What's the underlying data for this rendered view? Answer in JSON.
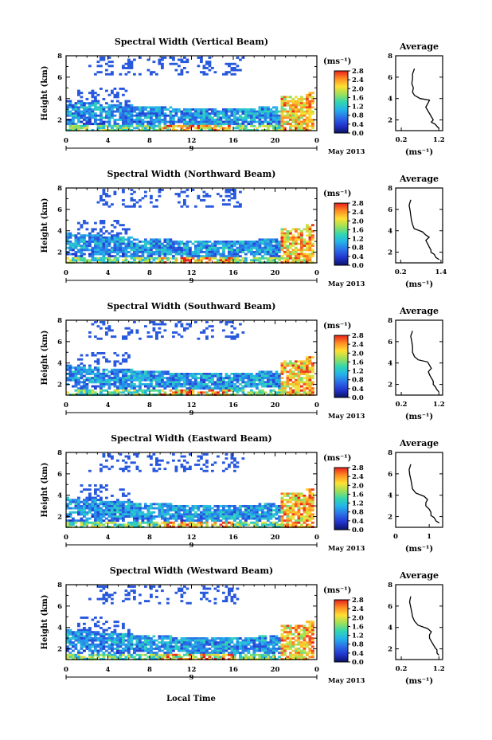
{
  "figure": {
    "xlabel": "Local Time",
    "date_label": "May 2013",
    "colorbar_unit": "(ms⁻¹)",
    "profile_xlabel": "(ms⁻¹)",
    "profile_title": "Average"
  },
  "chart_data": [
    {
      "type": "heatmap",
      "title": "Spectral Width (Vertical Beam)",
      "ylabel": "Height (km)",
      "x_ticks": [
        "0",
        "4",
        "8",
        "12",
        "16",
        "20",
        "0"
      ],
      "x_day_ticks": [
        "9"
      ],
      "y_ticks": [
        "2",
        "4",
        "6",
        "8"
      ],
      "xlim": [
        0,
        24
      ],
      "ylim": [
        1,
        8
      ],
      "colorbar_ticks": [
        "0.0",
        "0.4",
        "0.8",
        "1.2",
        "1.6",
        "2.0",
        "2.4",
        "2.8"
      ],
      "colorbar_range": [
        0,
        2.8
      ],
      "profile": {
        "title": "Average",
        "x_ticks": [
          "0.2",
          "1.2"
        ],
        "xlim": [
          0.05,
          1.3
        ],
        "y_ticks": [
          "2",
          "4",
          "6",
          "8"
        ],
        "ylim": [
          1,
          8
        ],
        "points": [
          [
            0.55,
            6.8
          ],
          [
            0.5,
            6.3
          ],
          [
            0.5,
            5.9
          ],
          [
            0.48,
            5.4
          ],
          [
            0.52,
            5.0
          ],
          [
            0.5,
            4.6
          ],
          [
            0.55,
            4.3
          ],
          [
            0.7,
            4.0
          ],
          [
            0.95,
            3.85
          ],
          [
            0.9,
            3.5
          ],
          [
            0.85,
            3.2
          ],
          [
            0.9,
            2.9
          ],
          [
            0.95,
            2.6
          ],
          [
            1.0,
            2.3
          ],
          [
            1.05,
            2.0
          ],
          [
            1.0,
            1.8
          ],
          [
            1.1,
            1.6
          ],
          [
            1.15,
            1.4
          ],
          [
            1.2,
            1.2
          ]
        ]
      }
    },
    {
      "type": "heatmap",
      "title": "Spectral Width (Northward Beam)",
      "ylabel": "Height (km)",
      "x_ticks": [
        "0",
        "4",
        "8",
        "12",
        "16",
        "20",
        "0"
      ],
      "x_day_ticks": [
        "9"
      ],
      "y_ticks": [
        "2",
        "4",
        "6",
        "8"
      ],
      "xlim": [
        0,
        24
      ],
      "ylim": [
        1,
        8
      ],
      "colorbar_ticks": [
        "0.0",
        "0.4",
        "0.8",
        "1.2",
        "1.6",
        "2.0",
        "2.4",
        "2.8"
      ],
      "colorbar_range": [
        0,
        2.8
      ],
      "profile": {
        "title": "Average",
        "x_ticks": [
          "0.2",
          "1.4"
        ],
        "xlim": [
          0.05,
          1.45
        ],
        "y_ticks": [
          "2",
          "4",
          "6",
          "8"
        ],
        "ylim": [
          1,
          8
        ],
        "points": [
          [
            0.5,
            6.9
          ],
          [
            0.45,
            6.4
          ],
          [
            0.48,
            5.9
          ],
          [
            0.5,
            5.4
          ],
          [
            0.52,
            5.0
          ],
          [
            0.55,
            4.6
          ],
          [
            0.6,
            4.2
          ],
          [
            0.85,
            3.9
          ],
          [
            0.95,
            3.6
          ],
          [
            1.05,
            3.4
          ],
          [
            0.95,
            3.1
          ],
          [
            1.0,
            2.8
          ],
          [
            1.05,
            2.5
          ],
          [
            1.1,
            2.2
          ],
          [
            1.1,
            2.0
          ],
          [
            1.2,
            1.8
          ],
          [
            1.25,
            1.5
          ],
          [
            1.35,
            1.3
          ]
        ]
      }
    },
    {
      "type": "heatmap",
      "title": "Spectral Width (Southward Beam)",
      "ylabel": "Height (km)",
      "x_ticks": [
        "0",
        "4",
        "8",
        "12",
        "16",
        "20",
        "0"
      ],
      "x_day_ticks": [
        "9"
      ],
      "y_ticks": [
        "2",
        "4",
        "6",
        "8"
      ],
      "xlim": [
        0,
        24
      ],
      "ylim": [
        1,
        8
      ],
      "colorbar_ticks": [
        "0.0",
        "0.4",
        "0.8",
        "1.2",
        "1.6",
        "2.0",
        "2.4",
        "2.8"
      ],
      "colorbar_range": [
        0,
        2.8
      ],
      "profile": {
        "title": "Average",
        "x_ticks": [
          "0.2",
          "1.2"
        ],
        "xlim": [
          0.05,
          1.3
        ],
        "y_ticks": [
          "2",
          "4",
          "6",
          "8"
        ],
        "ylim": [
          1,
          8
        ],
        "points": [
          [
            0.5,
            7.0
          ],
          [
            0.45,
            6.5
          ],
          [
            0.48,
            6.0
          ],
          [
            0.5,
            5.5
          ],
          [
            0.5,
            5.0
          ],
          [
            0.55,
            4.6
          ],
          [
            0.65,
            4.3
          ],
          [
            0.9,
            4.1
          ],
          [
            0.95,
            3.8
          ],
          [
            1.0,
            3.5
          ],
          [
            0.92,
            3.2
          ],
          [
            0.95,
            2.9
          ],
          [
            1.0,
            2.6
          ],
          [
            1.05,
            2.3
          ],
          [
            1.05,
            2.0
          ],
          [
            1.1,
            1.8
          ],
          [
            1.15,
            1.5
          ],
          [
            1.2,
            1.3
          ]
        ]
      }
    },
    {
      "type": "heatmap",
      "title": "Spectral Width (Eastward Beam)",
      "ylabel": "Height (km)",
      "x_ticks": [
        "0",
        "4",
        "8",
        "12",
        "16",
        "20",
        "0"
      ],
      "x_day_ticks": [
        "9"
      ],
      "y_ticks": [
        "2",
        "4",
        "6",
        "8"
      ],
      "xlim": [
        0,
        24
      ],
      "ylim": [
        1,
        8
      ],
      "colorbar_ticks": [
        "0.0",
        "0.4",
        "0.8",
        "1.2",
        "1.6",
        "2.0",
        "2.4",
        "2.8"
      ],
      "colorbar_range": [
        0,
        2.8
      ],
      "profile": {
        "title": "Average",
        "x_ticks": [
          "0",
          "1"
        ],
        "xlim": [
          0,
          1.4
        ],
        "y_ticks": [
          "2",
          "4",
          "6",
          "8"
        ],
        "ylim": [
          1,
          8
        ],
        "points": [
          [
            0.45,
            6.9
          ],
          [
            0.4,
            6.4
          ],
          [
            0.42,
            5.9
          ],
          [
            0.45,
            5.5
          ],
          [
            0.48,
            5.0
          ],
          [
            0.5,
            4.6
          ],
          [
            0.6,
            4.2
          ],
          [
            0.85,
            3.9
          ],
          [
            0.95,
            3.6
          ],
          [
            0.9,
            3.3
          ],
          [
            0.9,
            3.0
          ],
          [
            1.0,
            2.7
          ],
          [
            1.05,
            2.4
          ],
          [
            1.05,
            2.1
          ],
          [
            1.15,
            1.9
          ],
          [
            1.2,
            1.6
          ],
          [
            1.3,
            1.4
          ]
        ]
      }
    },
    {
      "type": "heatmap",
      "title": "Spectral Width (Westward Beam)",
      "ylabel": "Height (km)",
      "x_ticks": [
        "0",
        "4",
        "8",
        "12",
        "16",
        "20",
        "0"
      ],
      "x_day_ticks": [
        "9"
      ],
      "y_ticks": [
        "2",
        "4",
        "6",
        "8"
      ],
      "xlim": [
        0,
        24
      ],
      "ylim": [
        1,
        8
      ],
      "colorbar_ticks": [
        "0.0",
        "0.4",
        "0.8",
        "1.2",
        "1.6",
        "2.0",
        "2.4",
        "2.8"
      ],
      "colorbar_range": [
        0,
        2.8
      ],
      "profile": {
        "title": "Average",
        "x_ticks": [
          "0.2",
          "1.2"
        ],
        "xlim": [
          0.05,
          1.3
        ],
        "y_ticks": [
          "2",
          "4",
          "6",
          "8"
        ],
        "ylim": [
          1,
          8
        ],
        "points": [
          [
            0.45,
            6.9
          ],
          [
            0.42,
            6.4
          ],
          [
            0.45,
            5.9
          ],
          [
            0.48,
            5.4
          ],
          [
            0.5,
            5.0
          ],
          [
            0.55,
            4.6
          ],
          [
            0.65,
            4.2
          ],
          [
            0.9,
            3.9
          ],
          [
            1.0,
            3.6
          ],
          [
            0.95,
            3.3
          ],
          [
            0.95,
            3.0
          ],
          [
            1.0,
            2.7
          ],
          [
            1.05,
            2.4
          ],
          [
            1.1,
            2.1
          ],
          [
            1.15,
            1.9
          ],
          [
            1.15,
            1.6
          ],
          [
            1.2,
            1.4
          ]
        ]
      }
    }
  ]
}
